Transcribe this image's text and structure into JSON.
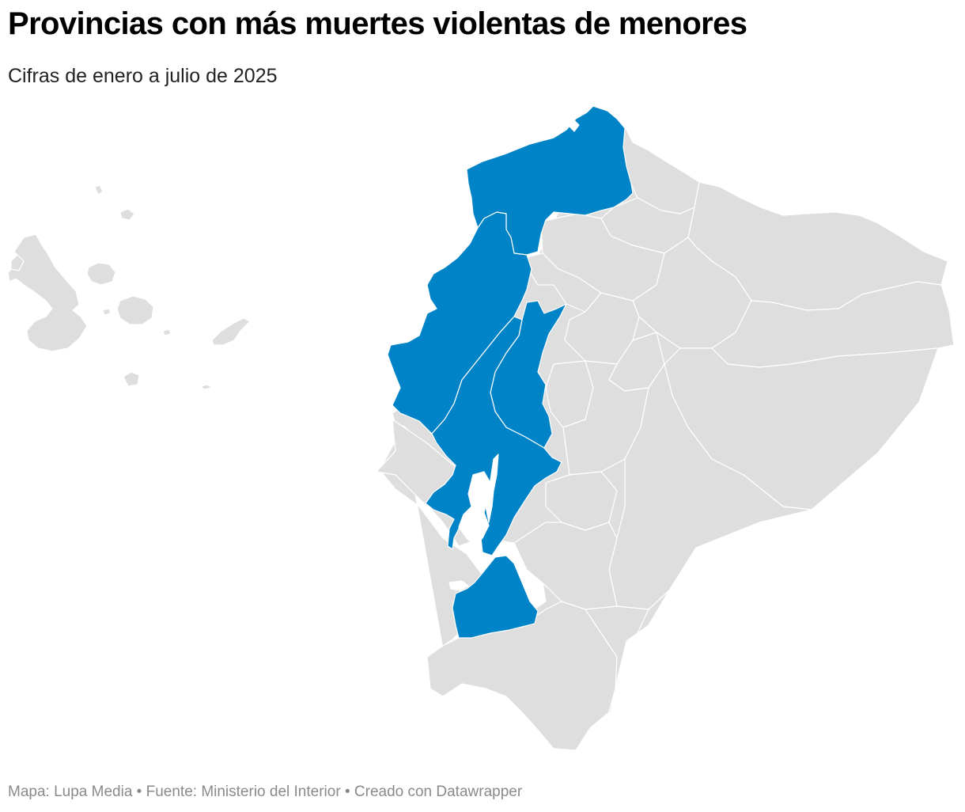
{
  "title": "Provincias con más muertes violentas de menores",
  "subtitle": "Cifras de enero a julio de 2025",
  "footer": {
    "map_credit": "Mapa: Lupa Media",
    "source": "Fuente: Ministerio del Interior",
    "created_with": "Creado con Datawrapper",
    "separator": "•"
  },
  "colors": {
    "highlight": "#0183c7",
    "base": "#dedede",
    "border": "#ffffff",
    "water": "#ffffff"
  }
}
